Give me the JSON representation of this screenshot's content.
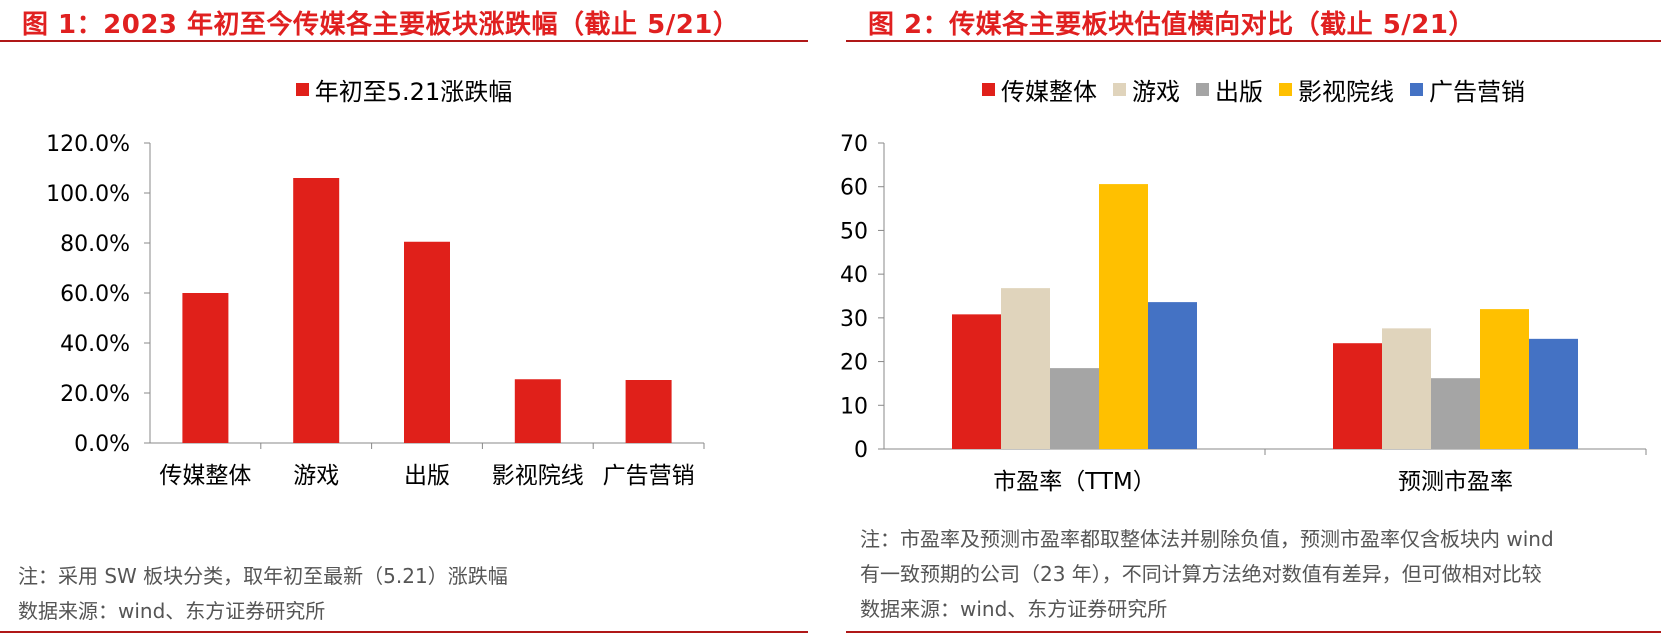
{
  "figure1": {
    "title": "图 1：2023 年初至今传媒各主要板块涨跌幅（截止 5/21）",
    "note": "注：采用 SW 板块分类，取年初至最新（5.21）涨跌幅",
    "source": "数据来源：wind、东方证券研究所"
  },
  "figure2": {
    "title": "图 2：传媒各主要板块估值横向对比（截止 5/21）",
    "note_line1": "注：市盈率及预测市盈率都取整体法并剔除负值，预测市盈率仅含板块内 wind",
    "note_line2": "有一致预期的公司（23 年），不同计算方法绝对数值有差异，但可做相对比较",
    "source": "数据来源：wind、东方证券研究所"
  },
  "chart_data": [
    {
      "type": "bar",
      "title": "",
      "categories": [
        "传媒整体",
        "游戏",
        "出版",
        "影视院线",
        "广告营销"
      ],
      "series": [
        {
          "name": "年初至5.21涨跌幅",
          "values": [
            0.6,
            1.06,
            0.805,
            0.255,
            0.252
          ],
          "color": "#e0201a"
        }
      ],
      "ylim": [
        0,
        1.2
      ],
      "yticks": [
        "0.0%",
        "20.0%",
        "40.0%",
        "60.0%",
        "80.0%",
        "100.0%",
        "120.0%"
      ],
      "xlabel": "",
      "ylabel": "",
      "grid": false,
      "legend": "top-center"
    },
    {
      "type": "bar",
      "title": "",
      "categories": [
        "市盈率（TTM）",
        "预测市盈率"
      ],
      "series": [
        {
          "name": "传媒整体",
          "values": [
            30.8,
            24.2
          ],
          "color": "#e0201a"
        },
        {
          "name": "游戏",
          "values": [
            36.8,
            27.6
          ],
          "color": "#e0d4bc"
        },
        {
          "name": "出版",
          "values": [
            18.5,
            16.2
          ],
          "color": "#a5a5a5"
        },
        {
          "name": "影视院线",
          "values": [
            60.6,
            32.0
          ],
          "color": "#ffc000"
        },
        {
          "name": "广告营销",
          "values": [
            33.6,
            25.2
          ],
          "color": "#4472c4"
        }
      ],
      "ylim": [
        0,
        70
      ],
      "yticks": [
        "0",
        "10",
        "20",
        "30",
        "40",
        "50",
        "60",
        "70"
      ],
      "xlabel": "",
      "ylabel": "",
      "grid": false,
      "legend": "top-center"
    }
  ]
}
